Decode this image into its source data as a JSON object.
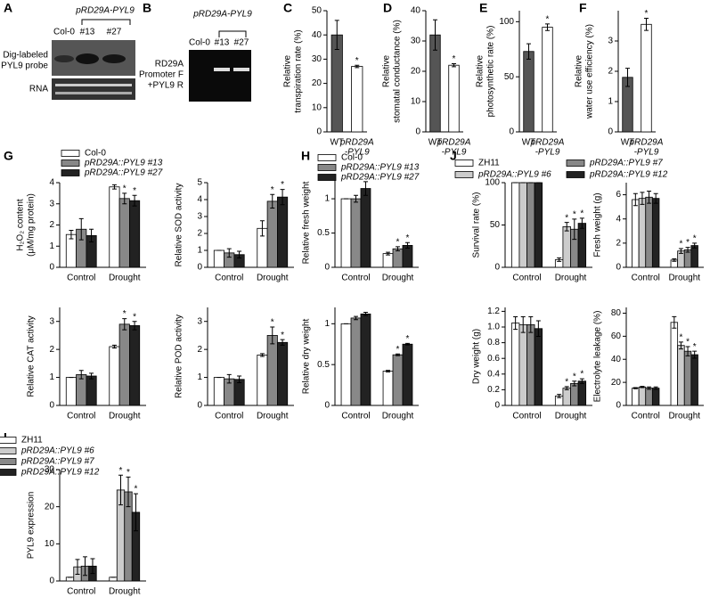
{
  "gels": [
    {
      "panel": "A",
      "construct": "pRD29A-PYL9",
      "lanes": [
        "Col-0",
        "#13",
        "#27"
      ],
      "rows": [
        [
          "Dig-labeled",
          "PYL9 probe"
        ],
        [
          "RNA"
        ]
      ]
    },
    {
      "panel": "B",
      "construct": "pRD29A-PYL9",
      "lanes": [
        "Col-0",
        "#13",
        "#27"
      ],
      "rows": [
        [
          "RD29A",
          "Promoter F",
          "+PYL9 R"
        ]
      ]
    }
  ],
  "chart_data": [
    {
      "type": "bar",
      "panel": "C",
      "ylabel": [
        "Relative",
        "transpiration rate (%)"
      ],
      "categories": [
        [
          "WT"
        ],
        [
          "pRD29A",
          "-PYL9"
        ]
      ],
      "values": [
        40,
        27
      ],
      "errors": [
        6,
        0.5
      ],
      "colors": [
        "#555555",
        "#ffffff"
      ],
      "starred": [
        false,
        true
      ],
      "significance_label": "*",
      "ylim": [
        0,
        50
      ],
      "yticks": [
        0,
        10,
        20,
        30,
        40,
        50
      ]
    },
    {
      "type": "bar",
      "panel": "D",
      "ylabel": [
        "Relative",
        "stomatal conductance (%)"
      ],
      "categories": [
        [
          "WT"
        ],
        [
          "pRD29A",
          "-PYL9"
        ]
      ],
      "values": [
        32,
        22
      ],
      "errors": [
        5,
        0.5
      ],
      "colors": [
        "#555555",
        "#ffffff"
      ],
      "starred": [
        false,
        true
      ],
      "significance_label": "*",
      "ylim": [
        0,
        40
      ],
      "yticks": [
        0,
        10,
        20,
        30,
        40
      ]
    },
    {
      "type": "bar",
      "panel": "E",
      "ylabel": [
        "Relative",
        "photosynthetic rate (%)"
      ],
      "categories": [
        [
          "WT"
        ],
        [
          "pRD29A",
          "-PYL9"
        ]
      ],
      "values": [
        73,
        95
      ],
      "errors": [
        7,
        3
      ],
      "colors": [
        "#555555",
        "#ffffff"
      ],
      "starred": [
        false,
        true
      ],
      "significance_label": "*",
      "ylim": [
        0,
        110
      ],
      "yticks": [
        0,
        50,
        100
      ]
    },
    {
      "type": "bar",
      "panel": "F",
      "ylabel": [
        "Relative",
        "water use efficiency (%)"
      ],
      "categories": [
        [
          "WT"
        ],
        [
          "pRD29A",
          "-PYL9"
        ]
      ],
      "values": [
        1.8,
        3.55
      ],
      "errors": [
        0.3,
        0.2
      ],
      "colors": [
        "#555555",
        "#ffffff"
      ],
      "starred": [
        false,
        true
      ],
      "significance_label": "*",
      "ylim": [
        0,
        4
      ],
      "yticks": [
        0,
        1,
        2,
        3
      ]
    },
    {
      "type": "grouped_bar",
      "panel": "G",
      "categories": [
        "Control",
        "Drought"
      ],
      "significance_label": "*",
      "series": [
        {
          "name": "Col-0",
          "color": "#ffffff"
        },
        {
          "name": "pRD29A::PYL9 #13",
          "color": "#888888"
        },
        {
          "name": "pRD29A::PYL9 #27",
          "color": "#222222"
        }
      ],
      "subplots": [
        {
          "ylabel": [
            "H₂O₂ content",
            "(μM/mg protein)"
          ],
          "ylim": [
            0,
            4
          ],
          "yticks": [
            0,
            1,
            2,
            3,
            4
          ],
          "values": [
            [
              1.55,
              3.8
            ],
            [
              1.8,
              3.25
            ],
            [
              1.5,
              3.15
            ]
          ],
          "errors": [
            [
              0.2,
              0.1
            ],
            [
              0.5,
              0.25
            ],
            [
              0.3,
              0.25
            ]
          ],
          "starred": [
            [
              false,
              false
            ],
            [
              false,
              true
            ],
            [
              false,
              true
            ]
          ]
        },
        {
          "ylabel": [
            "Relative SOD activity"
          ],
          "ylim": [
            0,
            5
          ],
          "yticks": [
            0,
            1,
            2,
            3,
            4,
            5
          ],
          "values": [
            [
              1,
              2.3
            ],
            [
              0.85,
              3.9
            ],
            [
              0.75,
              4.15
            ]
          ],
          "errors": [
            [
              0,
              0.45
            ],
            [
              0.25,
              0.4
            ],
            [
              0.2,
              0.45
            ]
          ],
          "starred": [
            [
              false,
              false
            ],
            [
              false,
              true
            ],
            [
              false,
              true
            ]
          ]
        },
        {
          "ylabel": [
            "Relative CAT activity"
          ],
          "ylim": [
            0,
            3.5
          ],
          "yticks": [
            0,
            1,
            2,
            3
          ],
          "values": [
            [
              1,
              2.1
            ],
            [
              1.1,
              2.9
            ],
            [
              1.05,
              2.85
            ]
          ],
          "errors": [
            [
              0,
              0.05
            ],
            [
              0.15,
              0.2
            ],
            [
              0.1,
              0.15
            ]
          ],
          "starred": [
            [
              false,
              false
            ],
            [
              false,
              true
            ],
            [
              false,
              true
            ]
          ]
        },
        {
          "ylabel": [
            "Relative POD activity"
          ],
          "ylim": [
            0,
            3.5
          ],
          "yticks": [
            0,
            1,
            2,
            3
          ],
          "values": [
            [
              1,
              1.8
            ],
            [
              0.95,
              2.5
            ],
            [
              0.93,
              2.25
            ]
          ],
          "errors": [
            [
              0,
              0.05
            ],
            [
              0.15,
              0.3
            ],
            [
              0.12,
              0.1
            ]
          ],
          "starred": [
            [
              false,
              false
            ],
            [
              false,
              true
            ],
            [
              false,
              true
            ]
          ]
        }
      ]
    },
    {
      "type": "grouped_bar",
      "panel": "H",
      "categories": [
        "Control",
        "Drought"
      ],
      "significance_label": "*",
      "series": [
        {
          "name": "Col-0",
          "color": "#ffffff"
        },
        {
          "name": "pRD29A::PYL9 #13",
          "color": "#888888"
        },
        {
          "name": "pRD29A::PYL9 #27",
          "color": "#222222"
        }
      ],
      "subplots": [
        {
          "ylabel": [
            "Relative fresh weight"
          ],
          "ylim": [
            0,
            1.3
          ],
          "yticks": [
            0,
            0.5,
            1
          ],
          "values": [
            [
              1,
              0.2
            ],
            [
              1,
              0.27
            ],
            [
              1.15,
              0.32
            ]
          ],
          "errors": [
            [
              0,
              0.02
            ],
            [
              0.05,
              0.03
            ],
            [
              0.1,
              0.04
            ]
          ],
          "starred": [
            [
              false,
              false
            ],
            [
              false,
              true
            ],
            [
              false,
              true
            ]
          ]
        },
        {
          "ylabel": [
            "Relative dry weight"
          ],
          "ylim": [
            0,
            1.2
          ],
          "yticks": [
            0,
            0.5,
            1
          ],
          "values": [
            [
              1,
              0.42
            ],
            [
              1.07,
              0.62
            ],
            [
              1.12,
              0.75
            ]
          ],
          "errors": [
            [
              0,
              0.01
            ],
            [
              0.02,
              0.01
            ],
            [
              0.02,
              0.01
            ]
          ],
          "starred": [
            [
              false,
              false
            ],
            [
              false,
              true
            ],
            [
              false,
              true
            ]
          ]
        }
      ]
    },
    {
      "type": "grouped_bar",
      "panel": "J",
      "categories": [
        "Control",
        "Drought"
      ],
      "significance_label": "*",
      "series": [
        {
          "name": "ZH11",
          "color": "#ffffff"
        },
        {
          "name": "pRD29A::PYL9 #6",
          "color": "#cccccc"
        },
        {
          "name": "pRD29A::PYL9 #7",
          "color": "#888888"
        },
        {
          "name": "pRD29A::PYL9 #12",
          "color": "#222222"
        }
      ],
      "subplots": [
        {
          "ylabel": [
            "Survival rate (%)"
          ],
          "ylim": [
            0,
            100
          ],
          "yticks": [
            0,
            50,
            100
          ],
          "values": [
            [
              100,
              9
            ],
            [
              100,
              48
            ],
            [
              100,
              45
            ],
            [
              100,
              52
            ]
          ],
          "errors": [
            [
              0,
              2
            ],
            [
              0,
              5
            ],
            [
              0,
              12
            ],
            [
              0,
              6
            ]
          ],
          "starred": [
            [
              false,
              false
            ],
            [
              false,
              true
            ],
            [
              false,
              true
            ],
            [
              false,
              true
            ]
          ]
        },
        {
          "ylabel": [
            "Fresh weight (g)"
          ],
          "ylim": [
            0,
            7
          ],
          "yticks": [
            0,
            2,
            4,
            6
          ],
          "values": [
            [
              5.6,
              0.6
            ],
            [
              5.7,
              1.35
            ],
            [
              5.8,
              1.45
            ],
            [
              5.7,
              1.8
            ]
          ],
          "errors": [
            [
              0.5,
              0.1
            ],
            [
              0.5,
              0.2
            ],
            [
              0.5,
              0.2
            ],
            [
              0.4,
              0.2
            ]
          ],
          "starred": [
            [
              false,
              false
            ],
            [
              false,
              true
            ],
            [
              false,
              true
            ],
            [
              false,
              true
            ]
          ]
        },
        {
          "ylabel": [
            "Dry weight (g)"
          ],
          "ylim": [
            0,
            1.25
          ],
          "yticks": [
            0,
            0.2,
            0.4,
            0.6,
            0.8,
            {
              "value": 1,
              "label": "1.0"
            },
            1.2
          ],
          "values": [
            [
              1.05,
              0.12
            ],
            [
              1.03,
              0.22
            ],
            [
              1.03,
              0.28
            ],
            [
              0.98,
              0.31
            ]
          ],
          "errors": [
            [
              0.08,
              0.02
            ],
            [
              0.1,
              0.02
            ],
            [
              0.1,
              0.03
            ],
            [
              0.1,
              0.03
            ]
          ],
          "starred": [
            [
              false,
              false
            ],
            [
              false,
              true
            ],
            [
              false,
              true
            ],
            [
              false,
              true
            ]
          ]
        },
        {
          "ylabel": [
            "Electrolyte leakage (%)"
          ],
          "ylim": [
            0,
            85
          ],
          "yticks": [
            0,
            20,
            40,
            60,
            80
          ],
          "values": [
            [
              15,
              72
            ],
            [
              16,
              52
            ],
            [
              15,
              47
            ],
            [
              15,
              44
            ]
          ],
          "errors": [
            [
              0.5,
              5
            ],
            [
              0.5,
              3
            ],
            [
              1,
              4
            ],
            [
              1,
              3
            ]
          ],
          "starred": [
            [
              false,
              false
            ],
            [
              false,
              true
            ],
            [
              false,
              true
            ],
            [
              false,
              true
            ]
          ]
        }
      ]
    },
    {
      "type": "grouped_bar",
      "panel": "I",
      "categories": [
        "Control",
        "Drought"
      ],
      "significance_label": "*",
      "series": [
        {
          "name": "ZH11",
          "color": "#ffffff"
        },
        {
          "name": "pRD29A::PYL9 #6",
          "color": "#cccccc"
        },
        {
          "name": "pRD29A::PYL9 #7",
          "color": "#888888"
        },
        {
          "name": "pRD29A::PYL9 #12",
          "color": "#222222"
        }
      ],
      "subplots": [
        {
          "ylabel": [
            "PYL9 expression"
          ],
          "ylim": [
            0,
            30
          ],
          "yticks": [
            0,
            10,
            20,
            30
          ],
          "values": [
            [
              1,
              1
            ],
            [
              3.8,
              24.5
            ],
            [
              4,
              24
            ],
            [
              4,
              18.5
            ]
          ],
          "errors": [
            [
              0,
              0
            ],
            [
              2,
              4
            ],
            [
              2.5,
              4
            ],
            [
              2,
              5
            ]
          ],
          "starred": [
            [
              false,
              false
            ],
            [
              false,
              true
            ],
            [
              false,
              true
            ],
            [
              false,
              true
            ]
          ]
        }
      ]
    }
  ]
}
